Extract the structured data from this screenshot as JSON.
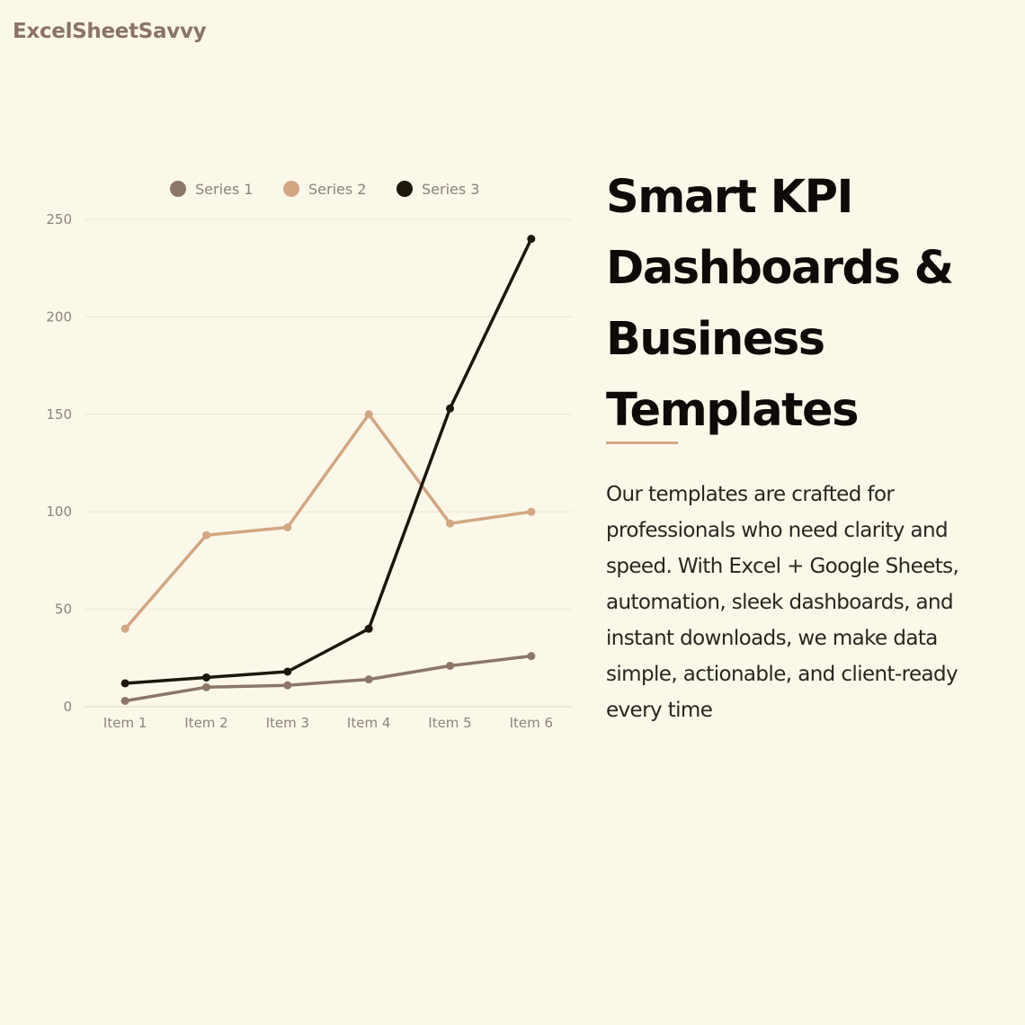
{
  "brand": {
    "name": "ExcelSheetSavvy",
    "color": "#8a7466"
  },
  "headline": {
    "text": "Smart KPI Dashboards & Business Templates"
  },
  "accent_color": "#d4a885",
  "body": {
    "text": "Our templates are crafted for professionals who need clarity and speed. With Excel + Google Sheets, automation, sleek dashboards, and instant downloads, we make data simple, actionable, and client-ready every time"
  },
  "chart_data": {
    "type": "line",
    "title": "",
    "xlabel": "",
    "ylabel": "",
    "categories": [
      "Item 1",
      "Item 2",
      "Item 3",
      "Item 4",
      "Item 5",
      "Item 6"
    ],
    "ylim": [
      0,
      250
    ],
    "yticks": [
      0,
      50,
      100,
      150,
      200,
      250
    ],
    "grid": true,
    "legend_position": "top",
    "series": [
      {
        "name": "Series 1",
        "color": "#8b7668",
        "values": [
          3,
          10,
          11,
          14,
          21,
          26
        ]
      },
      {
        "name": "Series 2",
        "color": "#d3a682",
        "values": [
          40,
          88,
          92,
          150,
          94,
          100
        ]
      },
      {
        "name": "Series 3",
        "color": "#1c160c",
        "values": [
          12,
          15,
          18,
          40,
          153,
          240
        ]
      }
    ]
  }
}
